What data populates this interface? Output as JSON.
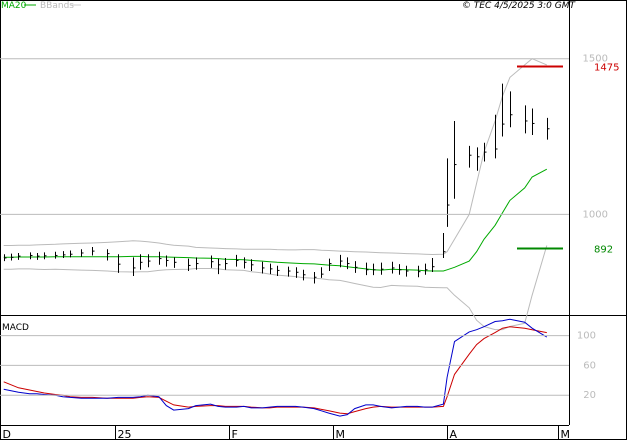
{
  "header": {
    "ma_label": "MA20",
    "bb_label": "BBands",
    "credit": "© TEC 4/5/2025 3:0 GMT"
  },
  "price_axis": {
    "ticks": [
      {
        "value": 1000,
        "label": "1000"
      },
      {
        "value": 1500,
        "label": "1500"
      }
    ]
  },
  "levels": [
    {
      "value": 1475,
      "label": "1475",
      "color": "#cc0000"
    },
    {
      "value": 892,
      "label": "892",
      "color": "#008800"
    }
  ],
  "macd_panel": {
    "title": "MACD",
    "ticks": [
      {
        "value": 100,
        "label": "100"
      },
      {
        "value": 60,
        "label": "60"
      },
      {
        "value": 20,
        "label": "20"
      }
    ]
  },
  "month_labels": [
    "D",
    "25",
    "F",
    "M",
    "A",
    "M"
  ],
  "colors": {
    "price": "#000000",
    "ma": "#00aa00",
    "bands": "#bbbbbb",
    "macd": "#0000cc",
    "signal": "#cc0000"
  },
  "chart_data": [
    {
      "type": "ohlc",
      "title": "",
      "x_range": [
        "2024-12-01",
        "2025-05-04"
      ],
      "y_range": [
        680,
        1650
      ],
      "legend": "top-left",
      "series": [
        {
          "name": "MA20",
          "values": [
            862,
            862,
            863,
            863,
            863,
            863,
            864,
            864,
            864,
            864,
            864,
            864,
            864,
            865,
            865,
            864,
            864,
            863,
            862,
            861,
            860,
            859,
            858,
            856,
            855,
            854,
            852,
            850,
            848,
            846,
            844,
            843,
            842,
            841,
            839,
            837,
            835,
            832,
            829,
            825,
            822,
            821,
            824,
            823,
            822,
            821,
            819,
            818,
            818,
            822,
            830,
            850,
            880,
            920,
            965,
            1005,
            1045,
            1085,
            1120,
            1145
          ]
        },
        {
          "name": "BBands",
          "upper": [
            900,
            900,
            901,
            901,
            902,
            903,
            904,
            905,
            906,
            907,
            908,
            910,
            912,
            915,
            914,
            912,
            908,
            904,
            901,
            898,
            894,
            892,
            891,
            890,
            889,
            888,
            888,
            888,
            888,
            887,
            886,
            886,
            887,
            887,
            885,
            884,
            882,
            881,
            880,
            879,
            878,
            877,
            876,
            875,
            874,
            873,
            872,
            871,
            872,
            880,
            920,
            1000,
            1100,
            1200,
            1300,
            1380,
            1440,
            1480,
            1500,
            1480
          ],
          "lower": [
            824,
            824,
            825,
            825,
            824,
            823,
            824,
            823,
            822,
            821,
            820,
            818,
            816,
            815,
            816,
            816,
            820,
            822,
            823,
            824,
            826,
            826,
            825,
            822,
            821,
            820,
            816,
            812,
            808,
            805,
            802,
            800,
            797,
            795,
            793,
            790,
            788,
            783,
            778,
            771,
            766,
            765,
            772,
            771,
            770,
            769,
            766,
            765,
            764,
            764,
            740,
            700,
            660,
            640,
            630,
            630,
            640,
            650,
            740,
            900
          ]
        },
        {
          "name": "Price",
          "dates": [
            "2024-12-02",
            "2024-12-04",
            "2024-12-06",
            "2024-12-09",
            "2024-12-11",
            "2024-12-13",
            "2024-12-16",
            "2024-12-18",
            "2024-12-20",
            "2024-12-23",
            "2024-12-26",
            "2024-12-30",
            "2025-01-02",
            "2025-01-06",
            "2025-01-08",
            "2025-01-10",
            "2025-01-13",
            "2025-01-15",
            "2025-01-17",
            "2025-01-21",
            "2025-01-23",
            "2025-01-27",
            "2025-01-29",
            "2025-01-31",
            "2025-02-03",
            "2025-02-05",
            "2025-02-07",
            "2025-02-10",
            "2025-02-12",
            "2025-02-14",
            "2025-02-17",
            "2025-02-19",
            "2025-02-21",
            "2025-02-24",
            "2025-02-26",
            "2025-02-28",
            "2025-03-03",
            "2025-03-05",
            "2025-03-07",
            "2025-03-10",
            "2025-03-12",
            "2025-03-14",
            "2025-03-17",
            "2025-03-19",
            "2025-03-21",
            "2025-03-24",
            "2025-03-26",
            "2025-03-28",
            "2025-03-31",
            "2025-04-01",
            "2025-04-03",
            "2025-04-07",
            "2025-04-09",
            "2025-04-11",
            "2025-04-14",
            "2025-04-16",
            "2025-04-18",
            "2025-04-22",
            "2025-04-24",
            "2025-04-28"
          ],
          "close": [
            860,
            862,
            866,
            868,
            866,
            867,
            868,
            870,
            872,
            876,
            882,
            874,
            840,
            828,
            846,
            850,
            858,
            852,
            846,
            836,
            842,
            848,
            838,
            842,
            852,
            846,
            838,
            828,
            825,
            820,
            818,
            814,
            806,
            798,
            808,
            842,
            850,
            842,
            830,
            822,
            822,
            824,
            828,
            822,
            818,
            816,
            822,
            832,
            880,
            1030,
            1160,
            1190,
            1185,
            1200,
            1210,
            1290,
            1320,
            1300,
            1292,
            1275
          ],
          "high": [
            872,
            874,
            876,
            878,
            876,
            878,
            880,
            882,
            884,
            888,
            895,
            888,
            872,
            862,
            872,
            872,
            880,
            868,
            862,
            858,
            862,
            868,
            858,
            860,
            870,
            862,
            856,
            848,
            842,
            835,
            832,
            830,
            822,
            815,
            830,
            858,
            870,
            862,
            850,
            845,
            842,
            845,
            848,
            840,
            835,
            835,
            842,
            860,
            940,
            1180,
            1300,
            1220,
            1215,
            1230,
            1320,
            1420,
            1395,
            1350,
            1340,
            1310
          ],
          "low": [
            850,
            852,
            854,
            856,
            854,
            856,
            858,
            860,
            862,
            864,
            868,
            852,
            812,
            802,
            822,
            830,
            838,
            832,
            828,
            818,
            822,
            828,
            808,
            822,
            832,
            826,
            818,
            810,
            808,
            802,
            800,
            796,
            788,
            778,
            796,
            818,
            830,
            824,
            812,
            805,
            805,
            806,
            810,
            806,
            800,
            798,
            806,
            815,
            860,
            960,
            1050,
            1150,
            1140,
            1170,
            1180,
            1250,
            1280,
            1260,
            1255,
            1240
          ]
        }
      ]
    },
    {
      "type": "line",
      "title": "MACD",
      "x_range": [
        "2024-12-01",
        "2025-05-04"
      ],
      "y_range": [
        -20,
        125
      ],
      "series": [
        {
          "name": "MACD",
          "values": [
            28,
            26,
            24,
            22,
            22,
            21,
            20,
            18,
            17,
            16,
            16,
            16,
            17,
            17,
            18,
            20,
            18,
            6,
            0,
            2,
            6,
            8,
            5,
            4,
            4,
            5,
            3,
            3,
            4,
            5,
            5,
            5,
            4,
            2,
            -1,
            -4,
            -8,
            -6,
            2,
            7,
            7,
            5,
            3,
            4,
            5,
            5,
            4,
            4,
            8,
            44,
            92,
            105,
            108,
            112,
            119,
            120,
            122,
            118,
            110,
            98
          ]
        },
        {
          "name": "Signal",
          "values": [
            38,
            34,
            30,
            27,
            25,
            23,
            21,
            20,
            18,
            17,
            17,
            16,
            16,
            16,
            17,
            18,
            17,
            12,
            7,
            4,
            5,
            6,
            6,
            5,
            5,
            5,
            4,
            3,
            3,
            4,
            4,
            4,
            4,
            3,
            1,
            -1,
            -4,
            -5,
            -2,
            2,
            4,
            5,
            4,
            4,
            4,
            4,
            4,
            4,
            5,
            18,
            48,
            75,
            88,
            96,
            104,
            110,
            112,
            110,
            108,
            104
          ]
        }
      ]
    }
  ]
}
